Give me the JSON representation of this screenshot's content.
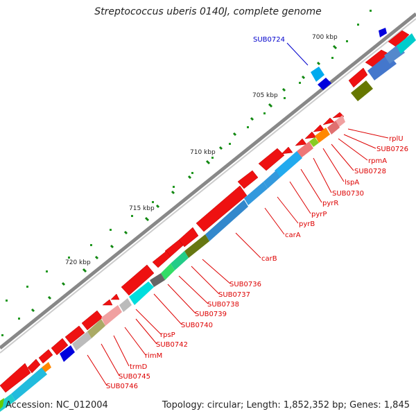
{
  "title": "Streptococcus uberis 0140J, complete genome",
  "footer": {
    "accession_label": "Accession:",
    "accession": "NC_012004",
    "topology_text": "Topology: circular; Length: 1,852,352 bp; Genes: 1,845"
  },
  "scale_labels": [
    "700 kbp",
    "705 kbp",
    "710 kbp",
    "715 kbp",
    "720 kbp"
  ],
  "highlight_label": "SUB0724",
  "gene_labels": [
    "rplU",
    "SUB0726",
    "rpmA",
    "SUB0728",
    "lspA",
    "SUB0730",
    "pyrR",
    "pyrP",
    "pyrB",
    "carA",
    "carB",
    "SUB0736",
    "SUB0737",
    "SUB0738",
    "SUB0739",
    "SUB0740",
    "rpsP",
    "SUB0742",
    "rimM",
    "trmD",
    "SUB0745",
    "SUB0746"
  ],
  "colors": {
    "forward_gene": "#ee1111",
    "backbone": "#777777",
    "label_red": "#dd0000",
    "label_blue": "#0000cc",
    "tick_green": "#118811"
  }
}
